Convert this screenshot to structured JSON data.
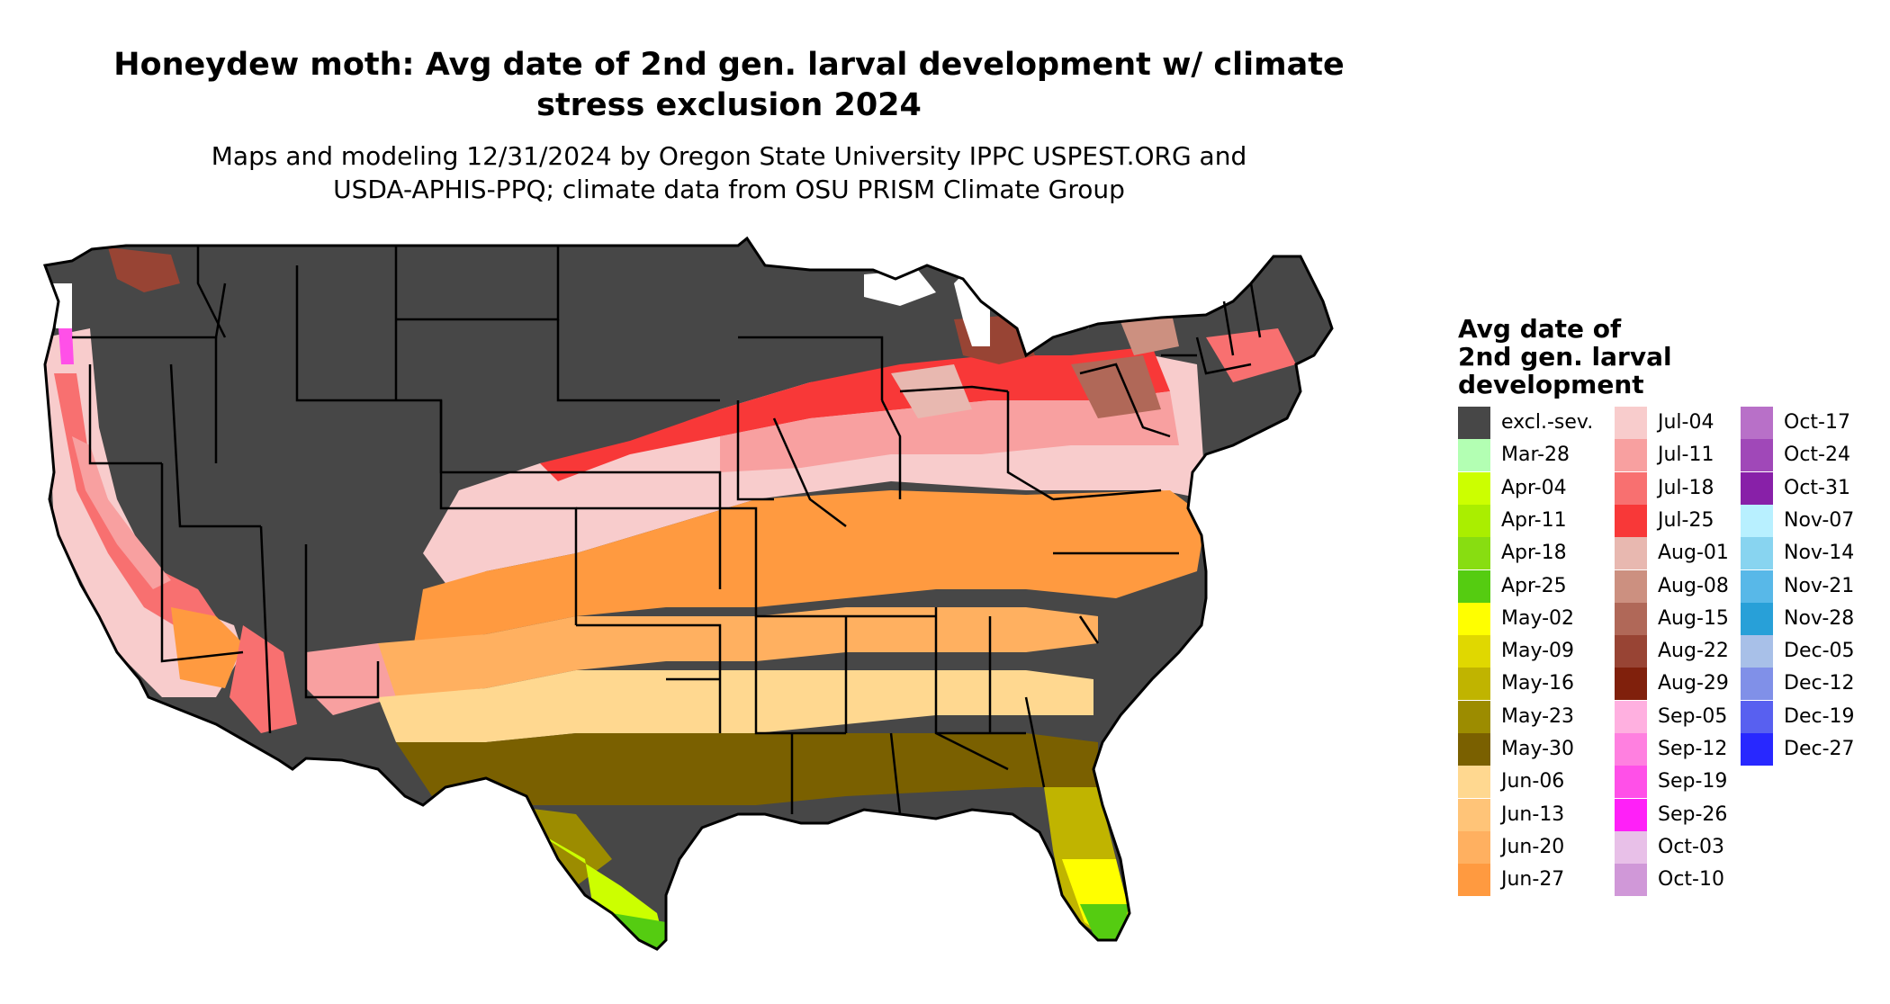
{
  "title_line1": "Honeydew moth: Avg date of 2nd gen. larval development w/ climate",
  "title_line2": "stress exclusion 2024",
  "subtitle_line1": "Maps and modeling 12/31/2024 by Oregon State University IPPC USPEST.ORG and",
  "subtitle_line2": "USDA-APHIS-PPQ; climate data from OSU PRISM Climate Group",
  "legend": {
    "title_line1": "Avg date of",
    "title_line2": "2nd gen. larval",
    "title_line3": "development",
    "columns": [
      [
        {
          "label": "excl.-sev.",
          "color": "#474747"
        },
        {
          "label": "Mar-28",
          "color": "#b3ffb3"
        },
        {
          "label": "Apr-04",
          "color": "#ccff00"
        },
        {
          "label": "Apr-11",
          "color": "#aaee00"
        },
        {
          "label": "Apr-18",
          "color": "#88dd11"
        },
        {
          "label": "Apr-25",
          "color": "#55cc11"
        },
        {
          "label": "May-02",
          "color": "#ffff00"
        },
        {
          "label": "May-09",
          "color": "#e0d800"
        },
        {
          "label": "May-16",
          "color": "#c0b400"
        },
        {
          "label": "May-23",
          "color": "#9c8c00"
        },
        {
          "label": "May-30",
          "color": "#7a6000"
        },
        {
          "label": "Jun-06",
          "color": "#ffd890"
        },
        {
          "label": "Jun-13",
          "color": "#ffc478"
        },
        {
          "label": "Jun-20",
          "color": "#ffb060"
        },
        {
          "label": "Jun-27",
          "color": "#ff9a40"
        }
      ],
      [
        {
          "label": "Jul-04",
          "color": "#f8cccc"
        },
        {
          "label": "Jul-11",
          "color": "#f8a0a0"
        },
        {
          "label": "Jul-18",
          "color": "#f87070"
        },
        {
          "label": "Jul-25",
          "color": "#f83838"
        },
        {
          "label": "Aug-01",
          "color": "#e8b8b0"
        },
        {
          "label": "Aug-08",
          "color": "#cc9080"
        },
        {
          "label": "Aug-15",
          "color": "#b06858"
        },
        {
          "label": "Aug-22",
          "color": "#984434"
        },
        {
          "label": "Aug-29",
          "color": "#80200c"
        },
        {
          "label": "Sep-05",
          "color": "#ffb0e0"
        },
        {
          "label": "Sep-12",
          "color": "#ff80e0"
        },
        {
          "label": "Sep-19",
          "color": "#ff50e8"
        },
        {
          "label": "Sep-26",
          "color": "#ff20f8"
        },
        {
          "label": "Oct-03",
          "color": "#e8c0e8"
        },
        {
          "label": "Oct-10",
          "color": "#d098d8"
        }
      ],
      [
        {
          "label": "Oct-17",
          "color": "#b870c8"
        },
        {
          "label": "Oct-24",
          "color": "#a048b8"
        },
        {
          "label": "Oct-31",
          "color": "#8820a8"
        },
        {
          "label": "Nov-07",
          "color": "#b8f0ff"
        },
        {
          "label": "Nov-14",
          "color": "#88d4f0"
        },
        {
          "label": "Nov-21",
          "color": "#58b8e8"
        },
        {
          "label": "Nov-28",
          "color": "#28a0d8"
        },
        {
          "label": "Dec-05",
          "color": "#a8c0e8"
        },
        {
          "label": "Dec-12",
          "color": "#8090e8"
        },
        {
          "label": "Dec-19",
          "color": "#5860f0"
        },
        {
          "label": "Dec-27",
          "color": "#2828ff"
        }
      ]
    ]
  },
  "map_colors": {
    "outline": "#000000",
    "excluded": "#474747",
    "missing": "#ffffff"
  }
}
